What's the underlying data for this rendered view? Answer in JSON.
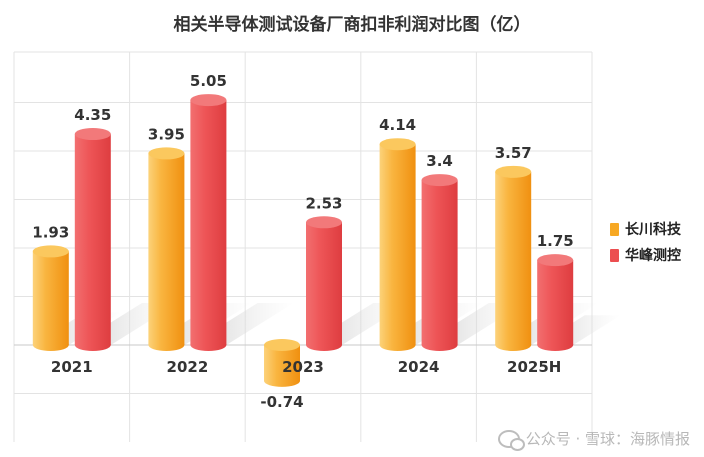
{
  "chart_data": {
    "type": "bar",
    "title": "相关半导体测试设备厂商扣非利润对比图（亿）",
    "categories": [
      "2021",
      "2022",
      "2023",
      "2024",
      "2025H"
    ],
    "series": [
      {
        "name": "长川科技",
        "values": [
          1.93,
          3.95,
          -0.74,
          4.14,
          3.57
        ],
        "color": "#f7a823"
      },
      {
        "name": "华峰测控",
        "values": [
          4.35,
          5.05,
          2.53,
          3.4,
          1.75
        ],
        "color": "#ec4e50"
      }
    ],
    "value_labels": [
      [
        "1.93",
        "3.95",
        "-0.74",
        "4.14",
        "3.57"
      ],
      [
        "4.35",
        "5.05",
        "2.53",
        "3.4",
        "1.75"
      ]
    ],
    "ylim": [
      -1,
      5.5
    ],
    "grid": true,
    "legend_position": "right"
  },
  "watermark": "公众号 · 雪球：海豚情报"
}
